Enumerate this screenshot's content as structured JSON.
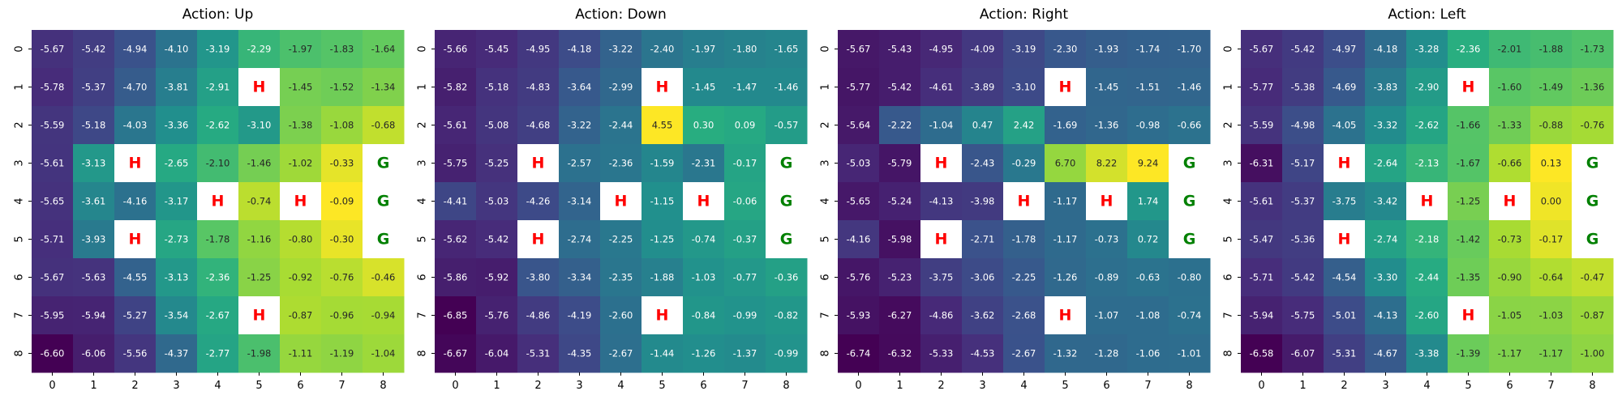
{
  "chart_data": [
    {
      "type": "heatmap",
      "title": "Action: Up",
      "x_ticks": [
        "0",
        "1",
        "2",
        "3",
        "4",
        "5",
        "6",
        "7",
        "8"
      ],
      "y_ticks": [
        "0",
        "1",
        "2",
        "3",
        "4",
        "5",
        "6",
        "7",
        "8"
      ],
      "values": [
        [
          -5.67,
          -5.42,
          -4.94,
          -4.1,
          -3.19,
          -2.29,
          -1.97,
          -1.83,
          -1.64
        ],
        [
          -5.78,
          -5.37,
          -4.7,
          -3.81,
          -2.91,
          "H",
          -1.45,
          -1.52,
          -1.34
        ],
        [
          -5.59,
          -5.18,
          -4.03,
          -3.36,
          -2.62,
          -3.1,
          -1.38,
          -1.08,
          -0.68
        ],
        [
          -5.61,
          -3.13,
          "H",
          -2.65,
          -2.1,
          -1.46,
          -1.02,
          -0.33,
          "G"
        ],
        [
          -5.65,
          -3.61,
          -4.16,
          -3.17,
          "H",
          -0.74,
          "H",
          -0.09,
          "G"
        ],
        [
          -5.71,
          -3.93,
          "H",
          -2.73,
          -1.78,
          -1.16,
          -0.8,
          -0.3,
          "G"
        ],
        [
          -5.67,
          -5.63,
          -4.55,
          -3.13,
          -2.36,
          -1.25,
          -0.92,
          -0.76,
          -0.46
        ],
        [
          -5.95,
          -5.94,
          -5.27,
          -3.54,
          -2.67,
          "H",
          -0.87,
          -0.96,
          -0.94
        ],
        [
          -6.6,
          -6.06,
          -5.56,
          -4.37,
          -2.77,
          -1.98,
          -1.11,
          -1.19,
          -1.04
        ]
      ]
    },
    {
      "type": "heatmap",
      "title": "Action: Down",
      "x_ticks": [
        "0",
        "1",
        "2",
        "3",
        "4",
        "5",
        "6",
        "7",
        "8"
      ],
      "y_ticks": [
        "0",
        "1",
        "2",
        "3",
        "4",
        "5",
        "6",
        "7",
        "8"
      ],
      "values": [
        [
          -5.66,
          -5.45,
          -4.95,
          -4.18,
          -3.22,
          -2.4,
          -1.97,
          -1.8,
          -1.65
        ],
        [
          -5.82,
          -5.18,
          -4.83,
          -3.64,
          -2.99,
          "H",
          -1.45,
          -1.47,
          -1.46
        ],
        [
          -5.61,
          -5.08,
          -4.68,
          -3.22,
          -2.44,
          4.55,
          0.3,
          0.09,
          -0.57
        ],
        [
          -5.75,
          -5.25,
          "H",
          -2.57,
          -2.36,
          -1.59,
          -2.31,
          -0.17,
          "G"
        ],
        [
          -4.41,
          -5.03,
          -4.26,
          -3.14,
          "H",
          -1.15,
          "H",
          -0.06,
          "G"
        ],
        [
          -5.62,
          -5.42,
          "H",
          -2.74,
          -2.25,
          -1.25,
          -0.74,
          -0.37,
          "G"
        ],
        [
          -5.86,
          -5.92,
          -3.8,
          -3.34,
          -2.35,
          -1.88,
          -1.03,
          -0.77,
          -0.36
        ],
        [
          -6.85,
          -5.76,
          -4.86,
          -4.19,
          -2.6,
          "H",
          -0.84,
          -0.99,
          -0.82
        ],
        [
          -6.67,
          -6.04,
          -5.31,
          -4.35,
          -2.67,
          -1.44,
          -1.26,
          -1.37,
          -0.99
        ]
      ]
    },
    {
      "type": "heatmap",
      "title": "Action: Right",
      "x_ticks": [
        "0",
        "1",
        "2",
        "3",
        "4",
        "5",
        "6",
        "7",
        "8"
      ],
      "y_ticks": [
        "0",
        "1",
        "2",
        "3",
        "4",
        "5",
        "6",
        "7",
        "8"
      ],
      "values": [
        [
          -5.67,
          -5.43,
          -4.95,
          -4.09,
          -3.19,
          -2.3,
          -1.93,
          -1.74,
          -1.7
        ],
        [
          -5.77,
          -5.42,
          -4.61,
          -3.89,
          -3.1,
          "H",
          -1.45,
          -1.51,
          -1.46
        ],
        [
          -5.64,
          -2.22,
          -1.04,
          0.47,
          2.42,
          -1.69,
          -1.36,
          -0.98,
          -0.66
        ],
        [
          -5.03,
          -5.79,
          "H",
          -2.43,
          -0.29,
          6.7,
          8.22,
          9.24,
          "G"
        ],
        [
          -5.65,
          -5.24,
          -4.13,
          -3.98,
          "H",
          -1.17,
          "H",
          1.74,
          "G"
        ],
        [
          -4.16,
          -5.98,
          "H",
          -2.71,
          -1.78,
          -1.17,
          -0.73,
          0.72,
          "G"
        ],
        [
          -5.76,
          -5.23,
          -3.75,
          -3.06,
          -2.25,
          -1.26,
          -0.89,
          -0.63,
          -0.8
        ],
        [
          -5.93,
          -6.27,
          -4.86,
          -3.62,
          -2.68,
          "H",
          -1.07,
          -1.08,
          -0.74
        ],
        [
          -6.74,
          -6.32,
          -5.33,
          -4.53,
          -2.67,
          -1.32,
          -1.28,
          -1.06,
          -1.01
        ]
      ]
    },
    {
      "type": "heatmap",
      "title": "Action: Left",
      "x_ticks": [
        "0",
        "1",
        "2",
        "3",
        "4",
        "5",
        "6",
        "7",
        "8"
      ],
      "y_ticks": [
        "0",
        "1",
        "2",
        "3",
        "4",
        "5",
        "6",
        "7",
        "8"
      ],
      "values": [
        [
          -5.67,
          -5.42,
          -4.97,
          -4.18,
          -3.28,
          -2.36,
          -2.01,
          -1.88,
          -1.73
        ],
        [
          -5.77,
          -5.38,
          -4.69,
          -3.83,
          -2.9,
          "H",
          -1.6,
          -1.49,
          -1.36
        ],
        [
          -5.59,
          -4.98,
          -4.05,
          -3.32,
          -2.62,
          -1.66,
          -1.33,
          -0.88,
          -0.76
        ],
        [
          -6.31,
          -5.17,
          "H",
          -2.64,
          -2.13,
          -1.67,
          -0.66,
          0.13,
          "G"
        ],
        [
          -5.61,
          -5.37,
          -3.75,
          -3.42,
          "H",
          -1.25,
          "H",
          0.0,
          "G"
        ],
        [
          -5.47,
          -5.36,
          "H",
          -2.74,
          -2.18,
          -1.42,
          -0.73,
          -0.17,
          "G"
        ],
        [
          -5.71,
          -5.42,
          -4.54,
          -3.3,
          -2.44,
          -1.35,
          -0.9,
          -0.64,
          -0.47
        ],
        [
          -5.94,
          -5.75,
          -5.01,
          -4.13,
          -2.6,
          "H",
          -1.05,
          -1.03,
          -0.87
        ],
        [
          -6.58,
          -6.07,
          -5.31,
          -4.67,
          -3.38,
          -1.39,
          -1.17,
          -1.17,
          -1.0
        ]
      ]
    }
  ],
  "colors": {
    "colormap": "viridis",
    "hole_text": "#ff0000",
    "goal_text": "#008000",
    "special_cell_background": "#ffffff"
  }
}
